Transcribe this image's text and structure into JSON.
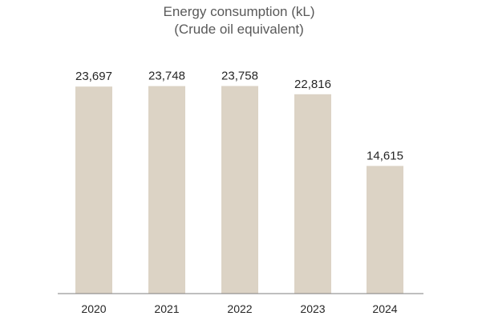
{
  "chart_data": {
    "type": "bar",
    "title": "Energy consumption (kL)",
    "subtitle": "(Crude oil equivalent)",
    "categories": [
      "2020",
      "2021",
      "2022",
      "2023",
      "2024"
    ],
    "values": [
      23697,
      23748,
      23758,
      22816,
      14615
    ],
    "value_labels": [
      "23,697",
      "23,748",
      "23,758",
      "22,816",
      "14,615"
    ],
    "ylim": [
      0,
      27100
    ],
    "grid": false,
    "legend": "none",
    "colors": {
      "bar": "#dcd3c5",
      "axis": "#7f7f7f",
      "title": "#595959",
      "label": "#262626"
    }
  }
}
